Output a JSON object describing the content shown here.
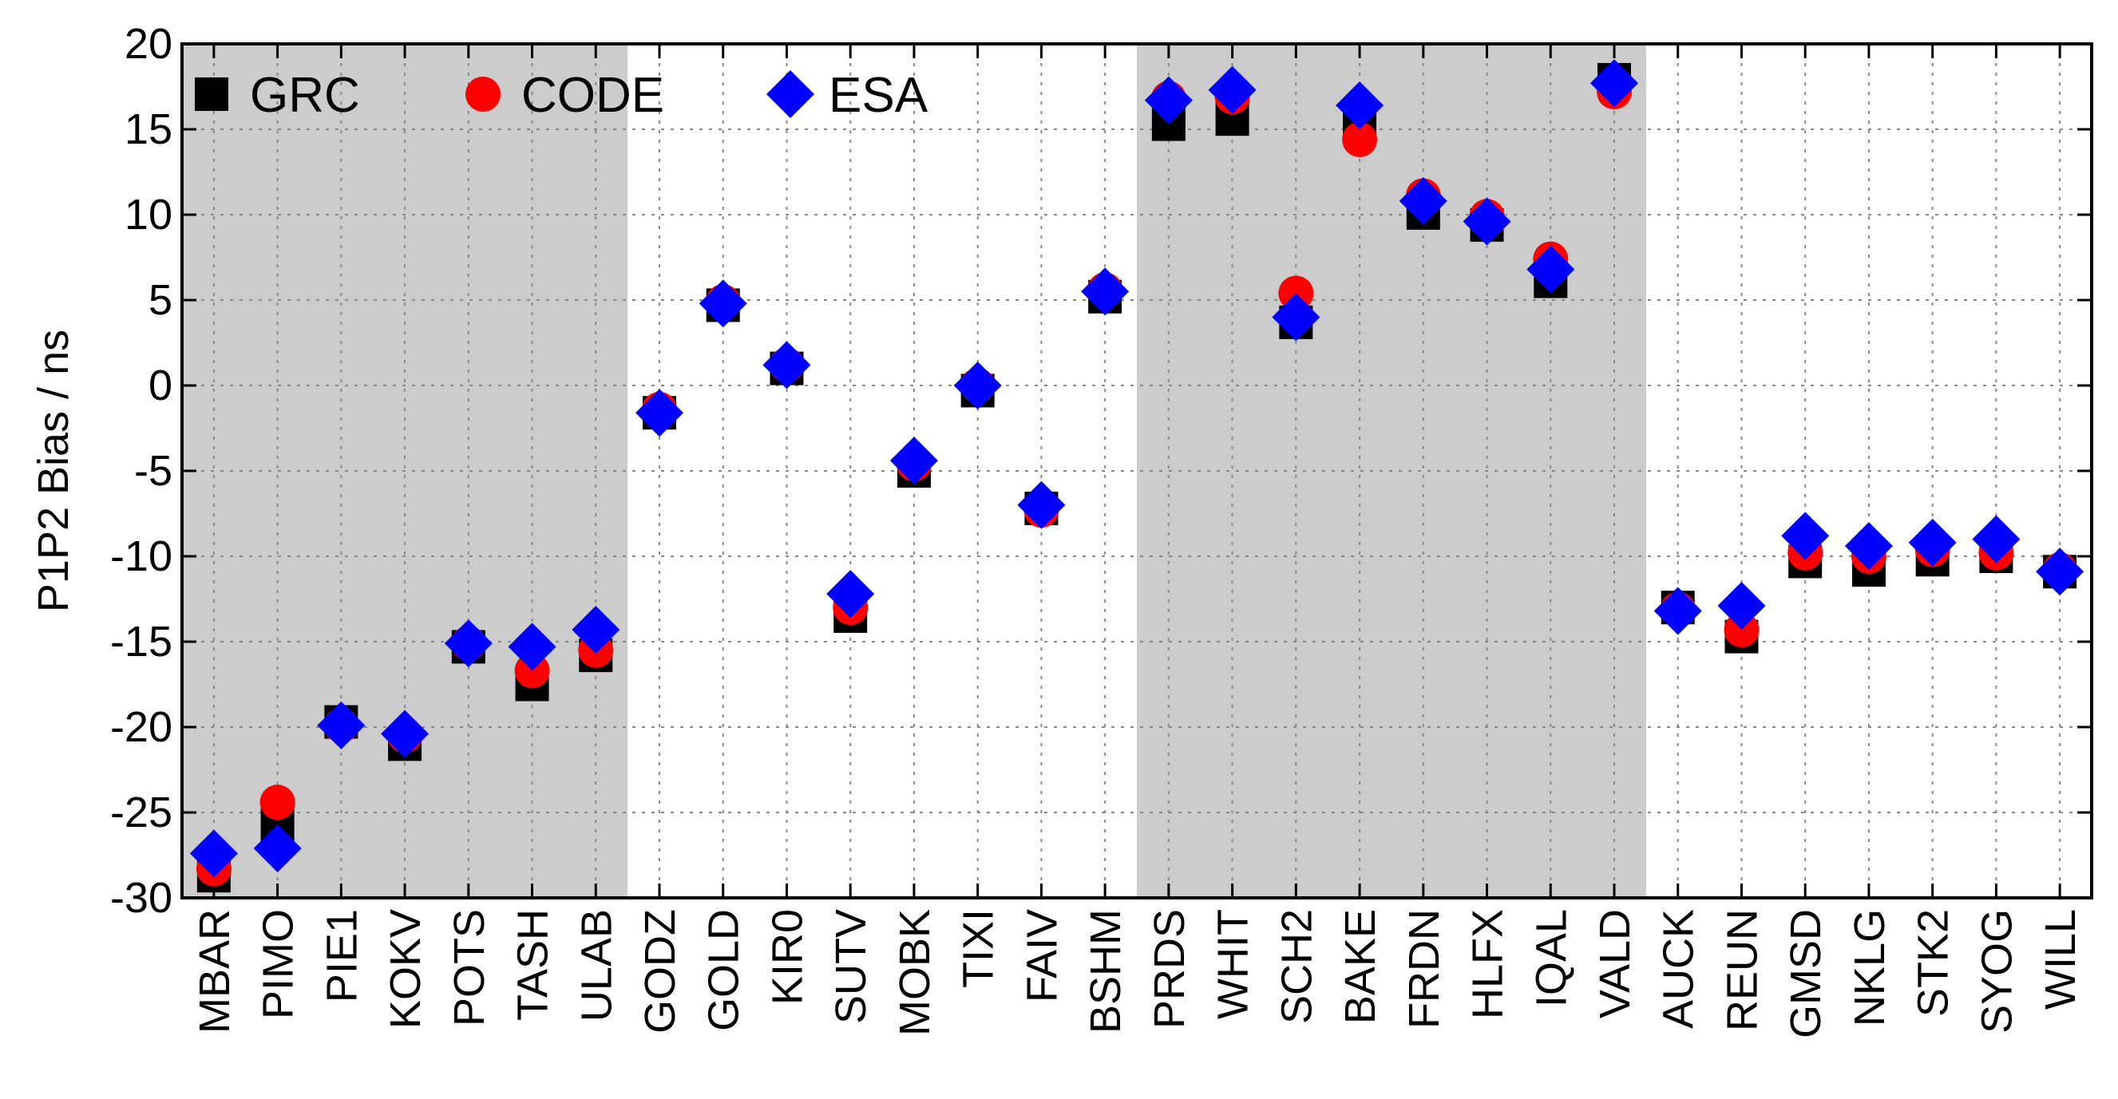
{
  "chart_data": {
    "type": "scatter",
    "title": "",
    "xlabel": "",
    "ylabel": "P1P2 Bias / ns",
    "ylim": [
      -30,
      20
    ],
    "yticks": [
      20,
      15,
      10,
      5,
      0,
      -5,
      -10,
      -15,
      -20,
      -25,
      -30
    ],
    "ytick_labels": [
      "20",
      "15",
      "10",
      "5",
      "0",
      "-5",
      "-10",
      "-15",
      "-20",
      "-25",
      "-30"
    ],
    "grid": true,
    "legend_position": "top-left",
    "categories": [
      "MBAR",
      "PIMO",
      "PIE1",
      "KOKV",
      "POTS",
      "TASH",
      "ULAB",
      "GODZ",
      "GOLD",
      "KIR0",
      "SUTV",
      "MOBK",
      "TIXI",
      "FAIV",
      "BSHM",
      "PRDS",
      "WHIT",
      "SCH2",
      "BAKE",
      "FRDN",
      "HLFX",
      "IQAL",
      "VALD",
      "AUCK",
      "REUN",
      "GMSD",
      "NKLG",
      "STK2",
      "SYOG",
      "WILL"
    ],
    "shaded_groups": [
      {
        "from": "MBAR",
        "to": "ULAB",
        "color": "#cccccc"
      },
      {
        "from": "PRDS",
        "to": "VALD",
        "color": "#cccccc"
      }
    ],
    "series": [
      {
        "name": "GRC",
        "marker": "square",
        "color": "#000000",
        "values": [
          -28.7,
          -25.7,
          -19.7,
          -21.0,
          -15.3,
          -17.5,
          -15.8,
          -1.6,
          4.7,
          1.0,
          -13.5,
          -5.0,
          -0.3,
          -7.2,
          5.2,
          15.3,
          15.6,
          3.7,
          15.6,
          10.1,
          9.4,
          6.1,
          17.9,
          -13.0,
          -14.7,
          -10.3,
          -10.8,
          -10.2,
          -10.0,
          -10.9
        ]
      },
      {
        "name": "CODE",
        "marker": "circle",
        "color": "#ff0000",
        "values": [
          -28.3,
          -24.4,
          -19.9,
          -20.5,
          -15.1,
          -16.7,
          -15.5,
          -1.4,
          4.9,
          1.2,
          -13.0,
          -4.6,
          0.0,
          -7.3,
          5.6,
          16.8,
          16.9,
          5.4,
          14.4,
          11.1,
          9.9,
          7.4,
          17.2,
          -13.1,
          -14.3,
          -9.8,
          -10.0,
          -9.6,
          -9.8,
          -10.8
        ]
      },
      {
        "name": "ESA",
        "marker": "diamond",
        "color": "#0000ff",
        "values": [
          -27.4,
          -27.1,
          -19.9,
          -20.4,
          -15.1,
          -15.3,
          -14.3,
          -1.6,
          4.8,
          1.2,
          -12.2,
          -4.4,
          0.0,
          -7.0,
          5.5,
          16.7,
          17.3,
          4.0,
          16.4,
          10.8,
          9.6,
          6.8,
          17.7,
          -13.2,
          -12.9,
          -8.8,
          -9.4,
          -9.2,
          -9.0,
          -10.9
        ]
      }
    ]
  }
}
